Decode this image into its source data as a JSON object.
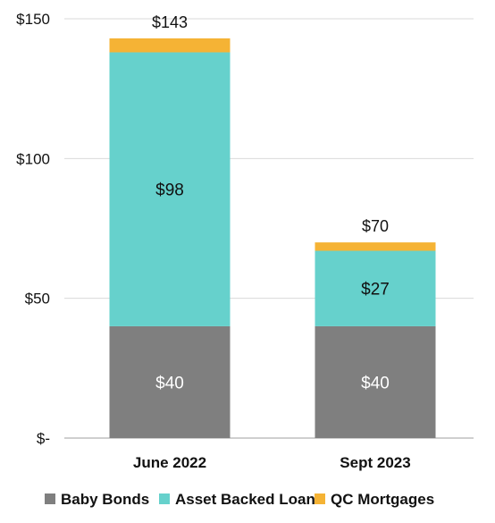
{
  "chart_data": {
    "type": "bar",
    "stacked": true,
    "categories": [
      "June 2022",
      "Sept 2023"
    ],
    "series": [
      {
        "name": "Baby Bonds",
        "values": [
          40,
          40
        ],
        "labels": [
          "$40",
          "$40"
        ],
        "color": "#7f7f7f",
        "label_color": "#ffffff"
      },
      {
        "name": "Asset Backed Loans",
        "values": [
          98,
          27
        ],
        "labels": [
          "$98",
          "$27"
        ],
        "color": "#66d1cc",
        "label_color": "#111111"
      },
      {
        "name": "QC Mortgages",
        "values": [
          5,
          3
        ],
        "labels": [
          "",
          ""
        ],
        "color": "#f5b335",
        "label_color": "#111111"
      }
    ],
    "totals": [
      143,
      70
    ],
    "total_labels": [
      "$143",
      "$70"
    ],
    "y_ticks": [
      0,
      50,
      100,
      150
    ],
    "y_tick_labels": [
      "$-",
      "$50",
      "$100",
      "$150"
    ],
    "ylim": [
      0,
      150
    ],
    "grid": true,
    "legend_position": "bottom"
  }
}
